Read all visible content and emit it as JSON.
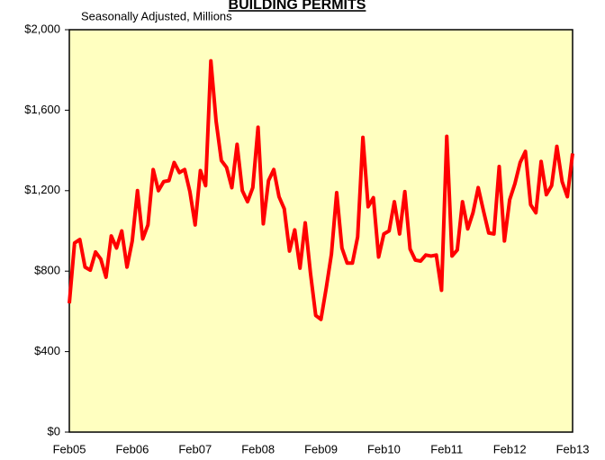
{
  "chart_data": {
    "type": "line",
    "title": "BUILDING PERMITS",
    "subtitle": "Seasonally Adjusted, Millions",
    "categories": [
      "Feb05",
      null,
      null,
      null,
      null,
      null,
      null,
      null,
      null,
      null,
      null,
      null,
      "Feb06",
      null,
      null,
      null,
      null,
      null,
      null,
      null,
      null,
      null,
      null,
      null,
      "Feb07",
      null,
      null,
      null,
      null,
      null,
      null,
      null,
      null,
      null,
      null,
      null,
      "Feb08",
      null,
      null,
      null,
      null,
      null,
      null,
      null,
      null,
      null,
      null,
      null,
      "Feb09",
      null,
      null,
      null,
      null,
      null,
      null,
      null,
      null,
      null,
      null,
      null,
      "Feb10",
      null,
      null,
      null,
      null,
      null,
      null,
      null,
      null,
      null,
      null,
      null,
      "Feb11",
      null,
      null,
      null,
      null,
      null,
      null,
      null,
      null,
      null,
      null,
      null,
      "Feb12",
      null,
      null,
      null,
      null,
      null,
      null,
      null,
      null,
      null,
      null,
      null,
      "Feb13"
    ],
    "series": [
      {
        "color": "#ff0000",
        "values": [
          640,
          940,
          957,
          820,
          805,
          895,
          860,
          770,
          975,
          915,
          1000,
          820,
          950,
          1200,
          960,
          1030,
          1305,
          1200,
          1245,
          1250,
          1340,
          1290,
          1305,
          1195,
          1030,
          1300,
          1225,
          1845,
          1545,
          1350,
          1315,
          1215,
          1430,
          1200,
          1145,
          1215,
          1515,
          1035,
          1250,
          1305,
          1170,
          1110,
          900,
          1005,
          815,
          1040,
          790,
          580,
          560,
          715,
          885,
          1190,
          915,
          840,
          840,
          970,
          1465,
          1120,
          1165,
          870,
          985,
          1000,
          1145,
          985,
          1195,
          910,
          855,
          850,
          880,
          875,
          880,
          705,
          1470,
          875,
          905,
          1145,
          1010,
          1090,
          1215,
          1100,
          990,
          985,
          1320,
          950,
          1155,
          1235,
          1340,
          1395,
          1130,
          1090,
          1345,
          1180,
          1225,
          1420,
          1245,
          1170,
          1385
        ]
      }
    ],
    "ylim": [
      0,
      2000
    ],
    "yticks": [
      {
        "value": 0,
        "label": "$0"
      },
      {
        "value": 400,
        "label": "$400"
      },
      {
        "value": 800,
        "label": "$800"
      },
      {
        "value": 1200,
        "label": "$1,200"
      },
      {
        "value": 1600,
        "label": "$1,600"
      },
      {
        "value": 2000,
        "label": "$2,000"
      }
    ]
  }
}
